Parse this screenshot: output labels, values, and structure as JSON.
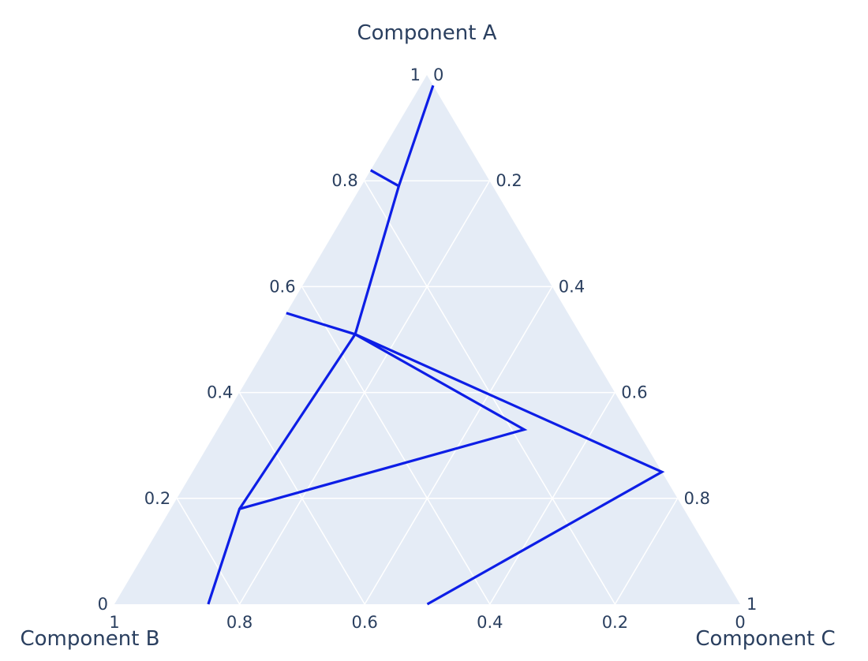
{
  "chart_data": {
    "type": "ternary",
    "axes": {
      "a": {
        "title": "Component A",
        "ticks": [
          "0",
          "0.2",
          "0.4",
          "0.6",
          "0.8",
          "1"
        ]
      },
      "b": {
        "title": "Component B",
        "ticks": [
          "0",
          "0.2",
          "0.4",
          "0.6",
          "0.8",
          "1"
        ]
      },
      "c": {
        "title": "Component C",
        "ticks": [
          "0",
          "0.2",
          "0.4",
          "0.6",
          "0.8",
          "1"
        ]
      }
    },
    "grid": true,
    "colors": {
      "plot_bg": "#e5ecf6",
      "grid": "#ffffff",
      "line": "#0d1ee6",
      "text": "#2a3f5f"
    },
    "series": [
      {
        "mode": "lines",
        "points": [
          {
            "a": 0.82,
            "b": 0.18,
            "c": 0.0
          },
          {
            "a": 0.79,
            "b": 0.15,
            "c": 0.06
          },
          {
            "a": 0.98,
            "b": 0.0,
            "c": 0.02
          },
          {
            "a": 0.79,
            "b": 0.15,
            "c": 0.06
          },
          {
            "a": 0.51,
            "b": 0.36,
            "c": 0.13
          },
          {
            "a": 0.18,
            "b": 0.71,
            "c": 0.11
          },
          {
            "a": 0.0,
            "b": 0.85,
            "c": 0.15
          },
          {
            "a": 0.18,
            "b": 0.71,
            "c": 0.11
          },
          {
            "a": 0.33,
            "b": 0.18,
            "c": 0.49
          },
          {
            "a": 0.51,
            "b": 0.36,
            "c": 0.13
          },
          {
            "a": 0.55,
            "b": 0.45,
            "c": 0.0
          },
          {
            "a": 0.51,
            "b": 0.36,
            "c": 0.13
          },
          {
            "a": 0.25,
            "b": 0.0,
            "c": 0.75
          },
          {
            "a": 0.0,
            "b": 0.5,
            "c": 0.5
          }
        ]
      }
    ]
  }
}
